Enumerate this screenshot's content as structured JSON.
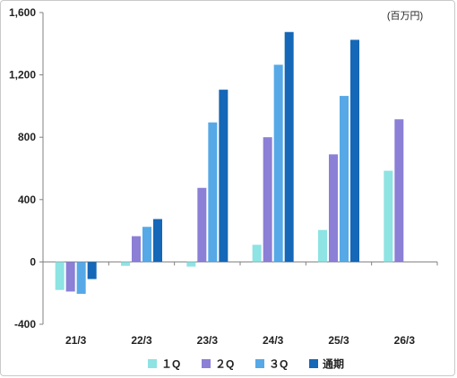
{
  "chart_data": {
    "type": "bar",
    "unit": "(百万円)",
    "categories": [
      "21/3",
      "22/3",
      "23/3",
      "24/3",
      "25/3",
      "26/3"
    ],
    "ylim": [
      -400,
      1600
    ],
    "yticks": [
      -400,
      0,
      400,
      800,
      1200,
      1600
    ],
    "ytick_labels": [
      "-400",
      "0",
      "400",
      "800",
      "1,200",
      "1,600"
    ],
    "grid": false,
    "legend_position": "bottom",
    "series": [
      {
        "name": "１Q",
        "color": "#8ee3e3",
        "values": [
          -180,
          -25,
          -30,
          110,
          205,
          585
        ]
      },
      {
        "name": "２Q",
        "color": "#8b7fd6",
        "values": [
          -190,
          165,
          475,
          800,
          690,
          915
        ]
      },
      {
        "name": "３Q",
        "color": "#56a9e6",
        "values": [
          -205,
          225,
          895,
          1265,
          1065,
          null
        ]
      },
      {
        "name": "通期",
        "color": "#1567b7",
        "values": [
          -110,
          275,
          1105,
          1475,
          1425,
          null
        ]
      }
    ]
  }
}
